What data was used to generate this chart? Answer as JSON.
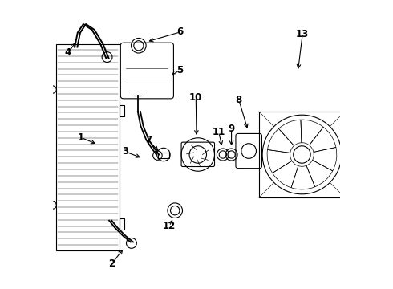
{
  "bg_color": "#ffffff",
  "line_color": "#000000",
  "label_color": "#000000",
  "figsize": [
    4.9,
    3.6
  ],
  "dpi": 100
}
